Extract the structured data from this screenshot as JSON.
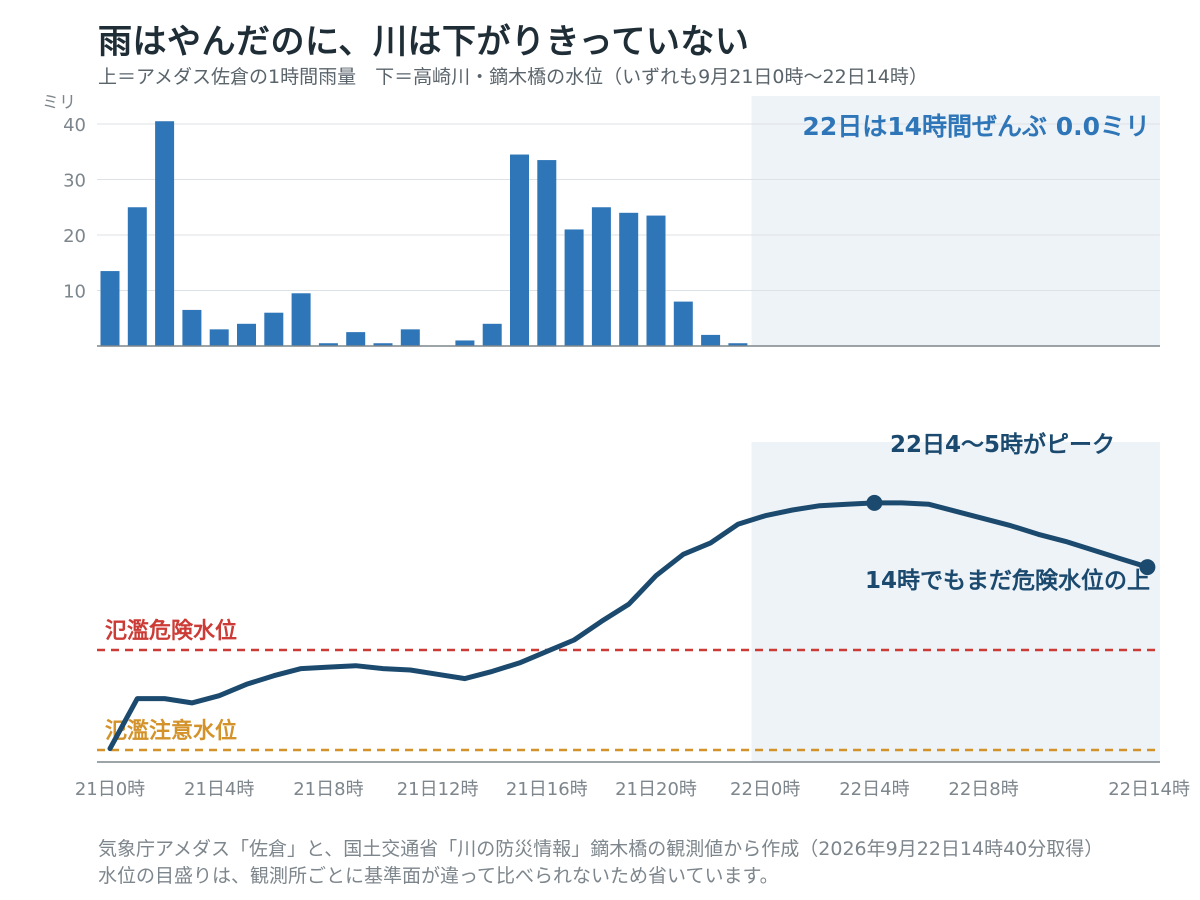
{
  "title": "雨はやんだのに、川は下がりきっていない",
  "subtitle": "上＝アメダス佐倉の1時間雨量　下＝高崎川・鏑木橋の水位（いずれも9月21日0時〜22日14時）",
  "footer": {
    "line1": "気象庁アメダス「佐倉」と、国土交通省「川の防災情報」鏑木橋の観測値から作成（2026年9月22日14時40分取得）",
    "line2": "水位の目盛りは、観測所ごとに基準面が違って比べられないため省いています。"
  },
  "colors": {
    "bar": "#2f76b8",
    "line": "#1b4a6e",
    "danger": "#cc3b35",
    "caution": "#d4932a",
    "shade": "#eef3f8",
    "annotation_rain": "#2f76b8"
  },
  "chart_data": [
    {
      "type": "bar",
      "ylabel": "ミリ",
      "ylim": [
        0,
        42
      ],
      "yticks": [
        10,
        20,
        30,
        40
      ],
      "grid": true,
      "x": [
        "21日0時",
        "21日1時",
        "21日2時",
        "21日3時",
        "21日4時",
        "21日5時",
        "21日6時",
        "21日7時",
        "21日8時",
        "21日9時",
        "21日10時",
        "21日11時",
        "21日12時",
        "21日13時",
        "21日14時",
        "21日15時",
        "21日16時",
        "21日17時",
        "21日18時",
        "21日19時",
        "21日20時",
        "21日21時",
        "21日22時",
        "21日23時",
        "22日0時",
        "22日1時",
        "22日2時",
        "22日3時",
        "22日4時",
        "22日5時",
        "22日6時",
        "22日7時",
        "22日8時",
        "22日9時",
        "22日10時",
        "22日11時",
        "22日12時",
        "22日13時",
        "22日14時"
      ],
      "values": [
        13.5,
        25,
        40.5,
        6.5,
        3,
        4,
        6,
        9.5,
        0.5,
        2.5,
        0.5,
        3,
        0,
        1,
        4,
        34.5,
        33.5,
        21,
        25,
        24,
        23.5,
        8,
        2,
        0.5,
        0,
        0,
        0,
        0,
        0,
        0,
        0,
        0,
        0,
        0,
        0,
        0,
        0,
        0,
        0
      ],
      "shaded_from": "22日0時",
      "annotation": "22日は14時間ぜんぶ 0.0ミリ"
    },
    {
      "type": "line",
      "ylabel": "",
      "y_axis_labels": false,
      "x": [
        "21日0時",
        "21日1時",
        "21日2時",
        "21日3時",
        "21日4時",
        "21日5時",
        "21日6時",
        "21日7時",
        "21日8時",
        "21日9時",
        "21日10時",
        "21日11時",
        "21日12時",
        "21日13時",
        "21日14時",
        "21日15時",
        "21日16時",
        "21日17時",
        "21日18時",
        "21日19時",
        "21日20時",
        "21日21時",
        "21日22時",
        "21日23時",
        "22日0時",
        "22日1時",
        "22日2時",
        "22日3時",
        "22日4時",
        "22日5時",
        "22日6時",
        "22日7時",
        "22日8時",
        "22日9時",
        "22日10時",
        "22日11時",
        "22日12時",
        "22日13時",
        "22日14時"
      ],
      "values": [
        2.1,
        5.6,
        5.6,
        5.3,
        5.8,
        6.6,
        7.2,
        7.7,
        7.8,
        7.9,
        7.7,
        7.6,
        7.3,
        7.0,
        7.5,
        8.1,
        8.9,
        9.7,
        11.0,
        12.2,
        14.2,
        15.7,
        16.5,
        17.8,
        18.4,
        18.8,
        19.1,
        19.2,
        19.3,
        19.3,
        19.2,
        18.7,
        18.2,
        17.7,
        17.1,
        16.6,
        16.0,
        15.4,
        14.8
      ],
      "thresholds": [
        {
          "name": "氾濫危険水位",
          "value": 9.0
        },
        {
          "name": "氾濫注意水位",
          "value": 2.0
        }
      ],
      "shaded_from": "22日0時",
      "highlight_points": [
        {
          "x": "22日4時",
          "label": "22日4〜5時がピーク"
        },
        {
          "x": "22日14時",
          "label": "14時でもまだ危険水位の上"
        }
      ]
    }
  ],
  "x_tick_labels": [
    "21日0時",
    "21日4時",
    "21日8時",
    "21日12時",
    "21日16時",
    "21日20時",
    "22日0時",
    "22日4時",
    "22日8時",
    "22日14時"
  ]
}
